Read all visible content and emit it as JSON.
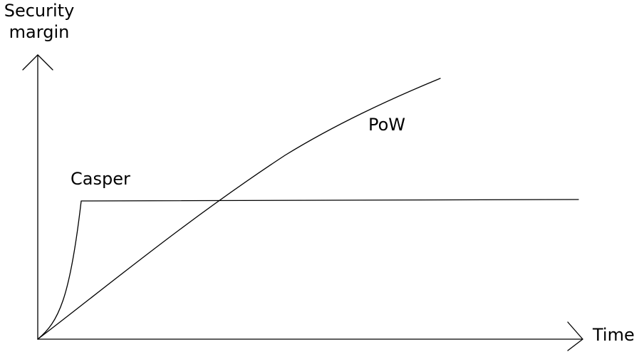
{
  "axes": {
    "y_label_line1": "Security",
    "y_label_line2": "margin",
    "x_label": "Time"
  },
  "curves": {
    "casper_label": "Casper",
    "pow_label": "PoW"
  },
  "colors": {
    "line": "#000000",
    "background": "#ffffff"
  }
}
